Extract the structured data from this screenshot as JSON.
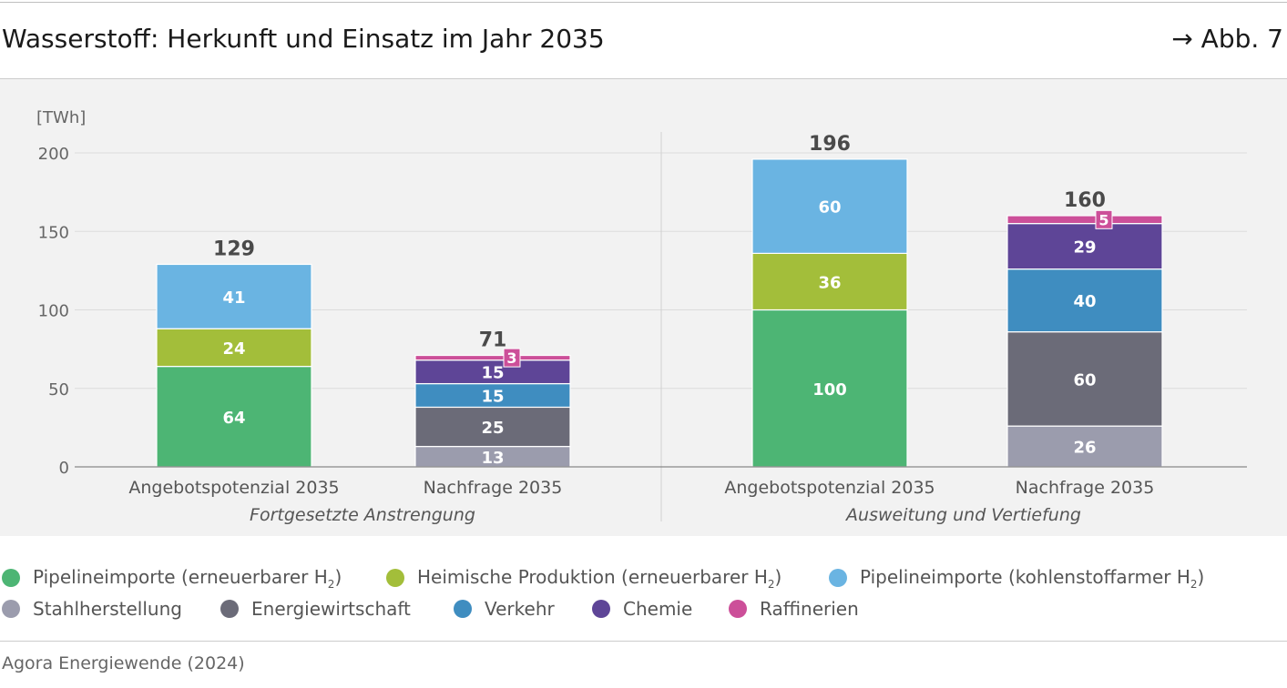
{
  "header": {
    "title": "Wasserstoff: Herkunft und Einsatz im Jahr 2035",
    "figure_ref": "→ Abb. 7"
  },
  "colors": {
    "pipeline_renewable": "#4db574",
    "domestic": "#a3be3a",
    "pipeline_lowcarbon": "#6ab4e2",
    "steel": "#9b9cad",
    "energy": "#6b6b78",
    "transport": "#3f8dc0",
    "chemistry": "#5e4597",
    "refineries": "#cc4f99"
  },
  "chart_data": {
    "type": "bar",
    "stacked": true,
    "unit": "[TWh]",
    "ylim": [
      0,
      200
    ],
    "yticks": [
      0,
      50,
      100,
      150,
      200
    ],
    "grid": true,
    "groups": [
      {
        "label": "Fortgesetzte Anstrengung",
        "bars": [
          {
            "label": "Angebotspotenzial 2035",
            "total": 129,
            "segments": [
              {
                "series": "Pipelineimporte (erneuerbarer H₂)",
                "color_key": "pipeline_renewable",
                "value": 64
              },
              {
                "series": "Heimische Produktion (erneuerbarer H₂)",
                "color_key": "domestic",
                "value": 24
              },
              {
                "series": "Pipelineimporte (kohlenstoffarmer H₂)",
                "color_key": "pipeline_lowcarbon",
                "value": 41
              }
            ]
          },
          {
            "label": "Nachfrage 2035",
            "total": 71,
            "segments": [
              {
                "series": "Stahlherstellung",
                "color_key": "steel",
                "value": 13
              },
              {
                "series": "Energiewirtschaft",
                "color_key": "energy",
                "value": 25
              },
              {
                "series": "Verkehr",
                "color_key": "transport",
                "value": 15
              },
              {
                "series": "Chemie",
                "color_key": "chemistry",
                "value": 15
              },
              {
                "series": "Raffinerien",
                "color_key": "refineries",
                "value": 3
              }
            ]
          }
        ]
      },
      {
        "label": "Ausweitung und Vertiefung",
        "bars": [
          {
            "label": "Angebotspotenzial 2035",
            "total": 196,
            "segments": [
              {
                "series": "Pipelineimporte (erneuerbarer H₂)",
                "color_key": "pipeline_renewable",
                "value": 100
              },
              {
                "series": "Heimische Produktion (erneuerbarer H₂)",
                "color_key": "domestic",
                "value": 36
              },
              {
                "series": "Pipelineimporte (kohlenstoffarmer H₂)",
                "color_key": "pipeline_lowcarbon",
                "value": 60
              }
            ]
          },
          {
            "label": "Nachfrage 2035",
            "total": 160,
            "segments": [
              {
                "series": "Stahlherstellung",
                "color_key": "steel",
                "value": 26
              },
              {
                "series": "Energiewirtschaft",
                "color_key": "energy",
                "value": 60
              },
              {
                "series": "Verkehr",
                "color_key": "transport",
                "value": 40
              },
              {
                "series": "Chemie",
                "color_key": "chemistry",
                "value": 29
              },
              {
                "series": "Raffinerien",
                "color_key": "refineries",
                "value": 5
              }
            ]
          }
        ]
      }
    ]
  },
  "legend": [
    {
      "text": "Pipelineimporte (erneuerbarer H",
      "sub": "2",
      "suffix": ")",
      "color_key": "pipeline_renewable"
    },
    {
      "text": "Heimische Produktion (erneuerbarer H",
      "sub": "2",
      "suffix": ")",
      "color_key": "domestic"
    },
    {
      "text": "Pipelineimporte (kohlenstoffarmer H",
      "sub": "2",
      "suffix": ")",
      "color_key": "pipeline_lowcarbon"
    },
    {
      "text": "Stahlherstellung",
      "sub": "",
      "suffix": "",
      "color_key": "steel"
    },
    {
      "text": "Energiewirtschaft",
      "sub": "",
      "suffix": "",
      "color_key": "energy"
    },
    {
      "text": "Verkehr",
      "sub": "",
      "suffix": "",
      "color_key": "transport"
    },
    {
      "text": "Chemie",
      "sub": "",
      "suffix": "",
      "color_key": "chemistry"
    },
    {
      "text": "Raffinerien",
      "sub": "",
      "suffix": "",
      "color_key": "refineries"
    }
  ],
  "footer": {
    "source": "Agora Energiewende (2024)"
  }
}
